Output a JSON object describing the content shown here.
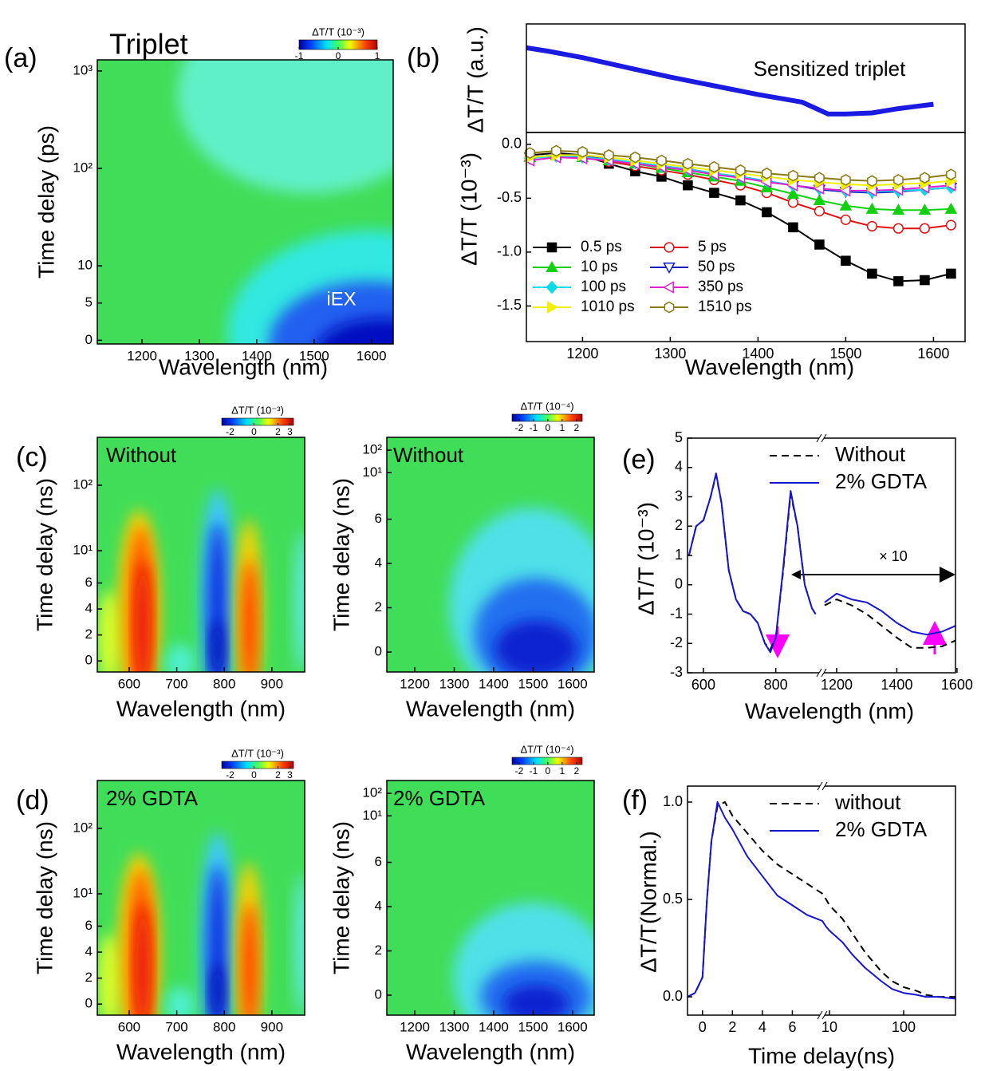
{
  "chart_data": [
    {
      "type": "heatmap",
      "panel_label": "(a)",
      "title": "Triplet",
      "annotation": "iEX",
      "xlabel": "Wavelength (nm)",
      "ylabel": "Time delay (ps)",
      "xlim": [
        1122,
        1638
      ],
      "xticks": [
        1200,
        1300,
        1400,
        1500,
        1600
      ],
      "ylim": [
        -0.5,
        1300
      ],
      "yscale": "linear-log",
      "ylinear_max": 10,
      "yticks": [
        0,
        5,
        10,
        {
          "value": 100,
          "label": "10²"
        },
        {
          "value": 1000,
          "label": "10³"
        }
      ],
      "colormap": "jet",
      "colorbar": {
        "label": "ΔT/T (10⁻³)",
        "lim": [
          -1,
          1
        ],
        "ticks": [
          -1,
          0,
          1
        ]
      }
    },
    {
      "type": "line",
      "panel_label": "(b)",
      "annotation": "Sensitized triplet",
      "ylabel": "ΔT/T (a.u.)",
      "xlim": [
        1136,
        1636
      ],
      "ylim": [
        0,
        1
      ],
      "x": [
        1136,
        1160,
        1200,
        1250,
        1300,
        1350,
        1400,
        1450,
        1480,
        1500,
        1530,
        1560,
        1600
      ],
      "series": [
        {
          "color": "#1a1ae0",
          "values": [
            0.78,
            0.75,
            0.69,
            0.6,
            0.51,
            0.43,
            0.35,
            0.28,
            0.17,
            0.17,
            0.18,
            0.22,
            0.26
          ]
        }
      ]
    },
    {
      "type": "line",
      "xlabel": "Wavelength (nm)",
      "ylabel": "ΔT/T (10⁻³)",
      "xlim": [
        1136,
        1636
      ],
      "xticks": [
        1200,
        1300,
        1400,
        1500,
        1600
      ],
      "ylim": [
        -1.83,
        0.11
      ],
      "yticks": [
        {
          "value": 0,
          "label": "0.0"
        },
        {
          "value": -0.5,
          "label": "-0.5"
        },
        {
          "value": -1,
          "label": "-1.0"
        },
        {
          "value": -1.5,
          "label": "-1.5"
        }
      ],
      "legend": "lower left",
      "legend_columns": 2,
      "x": [
        1140,
        1170,
        1200,
        1230,
        1260,
        1290,
        1320,
        1350,
        1380,
        1410,
        1440,
        1470,
        1500,
        1530,
        1560,
        1590,
        1620
      ],
      "series": [
        {
          "name": "0.5 ps",
          "color": "#000000",
          "marker": "square",
          "marker_filled": true,
          "values": [
            -0.1,
            -0.08,
            -0.1,
            -0.18,
            -0.25,
            -0.3,
            -0.38,
            -0.45,
            -0.52,
            -0.63,
            -0.77,
            -0.93,
            -1.08,
            -1.2,
            -1.27,
            -1.26,
            -1.2
          ]
        },
        {
          "name": "5 ps",
          "color": "#e01010",
          "marker": "circle",
          "marker_filled": false,
          "values": [
            -0.12,
            -0.1,
            -0.12,
            -0.16,
            -0.2,
            -0.24,
            -0.28,
            -0.33,
            -0.38,
            -0.45,
            -0.54,
            -0.62,
            -0.7,
            -0.76,
            -0.78,
            -0.78,
            -0.75
          ]
        },
        {
          "name": "10 ps",
          "color": "#10d010",
          "marker": "triangle-up",
          "marker_filled": true,
          "values": [
            -0.12,
            -0.1,
            -0.12,
            -0.15,
            -0.18,
            -0.22,
            -0.26,
            -0.3,
            -0.34,
            -0.4,
            -0.46,
            -0.52,
            -0.57,
            -0.6,
            -0.61,
            -0.61,
            -0.6
          ]
        },
        {
          "name": "50 ps",
          "color": "#1020c0",
          "marker": "triangle-down",
          "marker_filled": false,
          "values": [
            -0.12,
            -0.1,
            -0.11,
            -0.14,
            -0.17,
            -0.2,
            -0.23,
            -0.27,
            -0.3,
            -0.34,
            -0.38,
            -0.42,
            -0.44,
            -0.45,
            -0.44,
            -0.42,
            -0.4
          ]
        },
        {
          "name": "100 ps",
          "color": "#10d8e8",
          "marker": "diamond",
          "marker_filled": true,
          "values": [
            -0.13,
            -0.11,
            -0.12,
            -0.14,
            -0.17,
            -0.2,
            -0.23,
            -0.27,
            -0.3,
            -0.34,
            -0.38,
            -0.41,
            -0.43,
            -0.44,
            -0.43,
            -0.42,
            -0.4
          ]
        },
        {
          "name": "350 ps",
          "color": "#e020d0",
          "marker": "triangle-left",
          "marker_filled": false,
          "values": [
            -0.15,
            -0.12,
            -0.13,
            -0.15,
            -0.18,
            -0.21,
            -0.24,
            -0.28,
            -0.31,
            -0.35,
            -0.38,
            -0.41,
            -0.43,
            -0.43,
            -0.42,
            -0.4,
            -0.38
          ]
        },
        {
          "name": "1010 ps",
          "color": "#f0f000",
          "marker": "triangle-right",
          "marker_filled": true,
          "values": [
            -0.12,
            -0.1,
            -0.1,
            -0.12,
            -0.15,
            -0.18,
            -0.21,
            -0.24,
            -0.27,
            -0.3,
            -0.33,
            -0.35,
            -0.37,
            -0.38,
            -0.37,
            -0.36,
            -0.34
          ]
        },
        {
          "name": "1510 ps",
          "color": "#8a7a10",
          "marker": "hexagon",
          "marker_filled": false,
          "values": [
            -0.08,
            -0.06,
            -0.07,
            -0.1,
            -0.12,
            -0.15,
            -0.18,
            -0.21,
            -0.24,
            -0.27,
            -0.29,
            -0.31,
            -0.33,
            -0.34,
            -0.33,
            -0.31,
            -0.28
          ]
        }
      ]
    },
    {
      "type": "heatmap",
      "panel_label": "(c)",
      "annotation": "Without",
      "xlabel": "Wavelength (nm)",
      "ylabel": "Time delay (ns)",
      "xlim": [
        533,
        969
      ],
      "xticks": [
        600,
        700,
        800,
        900
      ],
      "ylim": [
        -0.85,
        540
      ],
      "yscale": "linear-log",
      "ylinear_max": 8,
      "yticks": [
        0,
        2,
        4,
        6,
        {
          "value": 10,
          "label": "10¹"
        },
        {
          "value": 100,
          "label": "10²"
        }
      ],
      "colormap": "jet",
      "colorbar": {
        "label": "ΔT/T (10⁻³)",
        "lim": [
          -2.7,
          3.3
        ],
        "ticks": [
          -2,
          0,
          2,
          3
        ]
      }
    },
    {
      "type": "heatmap",
      "annotation": "Without",
      "xlabel": "Wavelength (nm)",
      "ylabel": "Time delay (ns)",
      "xlim": [
        1129,
        1655
      ],
      "xticks": [
        1200,
        1300,
        1400,
        1500,
        1600
      ],
      "ylim": [
        -0.9,
        370
      ],
      "yscale": "linear-log",
      "ylinear_max": 8,
      "yticks": [
        0,
        2,
        4,
        6,
        {
          "value": 10,
          "label": "10¹"
        },
        {
          "value": 100,
          "label": "10²"
        }
      ],
      "colormap": "jet",
      "colorbar": {
        "label": "ΔT/T (10⁻⁴)",
        "lim": [
          -2.5,
          2.4
        ],
        "ticks": [
          -2,
          -1,
          0,
          1,
          2
        ]
      }
    },
    {
      "type": "heatmap",
      "panel_label": "(d)",
      "annotation": "2% GDTA",
      "xlabel": "Wavelength (nm)",
      "ylabel": "Time delay (ns)",
      "xlim": [
        533,
        969
      ],
      "xticks": [
        600,
        700,
        800,
        900
      ],
      "ylim": [
        -0.85,
        540
      ],
      "yscale": "linear-log",
      "ylinear_max": 8,
      "yticks": [
        0,
        2,
        4,
        6,
        {
          "value": 10,
          "label": "10¹"
        },
        {
          "value": 100,
          "label": "10²"
        }
      ],
      "colormap": "jet",
      "colorbar": {
        "label": "ΔT/T (10⁻³)",
        "lim": [
          -2.7,
          3.3
        ],
        "ticks": [
          -2,
          0,
          2,
          3
        ]
      }
    },
    {
      "type": "heatmap",
      "annotation": "2% GDTA",
      "xlabel": "Wavelength (nm)",
      "ylabel": "Time delay (ns)",
      "xlim": [
        1129,
        1655
      ],
      "xticks": [
        1200,
        1300,
        1400,
        1500,
        1600
      ],
      "ylim": [
        -0.9,
        370
      ],
      "yscale": "linear-log",
      "ylinear_max": 8,
      "yticks": [
        0,
        2,
        4,
        6,
        {
          "value": 10,
          "label": "10¹"
        },
        {
          "value": 100,
          "label": "10²"
        }
      ],
      "colormap": "jet",
      "colorbar": {
        "label": "ΔT/T (10⁻⁴)",
        "lim": [
          -2.5,
          2.4
        ],
        "ticks": [
          -2,
          -1,
          0,
          1,
          2
        ]
      }
    },
    {
      "type": "line",
      "panel_label": "(e)",
      "annotation": "× 10",
      "xlabel": "Wavelength (nm)",
      "ylabel": "ΔT/T (10⁻³)",
      "xlim": [
        556,
        1595
      ],
      "xbreak": [
        922,
        1155
      ],
      "xticks": [
        600,
        800,
        1200,
        1400,
        1600
      ],
      "ylim": [
        -3,
        5
      ],
      "yticks": [
        -3,
        -2,
        -1,
        0,
        1,
        2,
        3,
        4,
        5
      ],
      "legend": "upper right",
      "x": [
        560,
        580,
        600,
        620,
        635,
        650,
        670,
        690,
        710,
        730,
        750,
        770,
        785,
        800,
        820,
        841,
        860,
        880,
        900,
        910,
        1000,
        1160,
        1200,
        1250,
        1300,
        1350,
        1400,
        1450,
        1500,
        1550,
        1595
      ],
      "series": [
        {
          "name": "Without",
          "color": "#000000",
          "dash": "dashed",
          "values": [
            1.0,
            2.0,
            2.2,
            3.0,
            3.75,
            2.8,
            0.5,
            -0.5,
            -0.9,
            -1.0,
            -1.3,
            -2.0,
            -2.2,
            -1.8,
            0.4,
            3.1,
            2.0,
            0.0,
            -0.8,
            -1.0,
            null,
            -0.7,
            -0.5,
            -0.7,
            -1.0,
            -1.4,
            -1.8,
            -2.15,
            -2.15,
            -2.1,
            -1.9
          ]
        },
        {
          "name": "2% GDTA",
          "color": "#1515d0",
          "values": [
            1.0,
            2.0,
            2.2,
            3.0,
            3.8,
            2.8,
            0.5,
            -0.5,
            -0.9,
            -1.0,
            -1.3,
            -2.0,
            -2.3,
            -1.8,
            0.5,
            3.2,
            2.0,
            0.0,
            -0.8,
            -1.0,
            null,
            -0.6,
            -0.3,
            -0.5,
            -0.6,
            -0.9,
            -1.3,
            -1.6,
            -1.7,
            -1.6,
            -1.4
          ]
        }
      ]
    },
    {
      "type": "line",
      "panel_label": "(f)",
      "xlabel": "Time delay(ns)",
      "ylabel": "ΔT/T(Normal.)",
      "xlim": [
        -1,
        500
      ],
      "xscale": "linear-log",
      "xlinear_max": 8,
      "xticks": [
        0,
        2,
        4,
        6,
        10,
        100
      ],
      "ylim": [
        -0.094,
        1.082
      ],
      "yticks": [
        {
          "value": 0,
          "label": "0.0"
        },
        {
          "value": 0.5,
          "label": "0.5"
        },
        {
          "value": 1,
          "label": "1.0"
        }
      ],
      "legend": "upper right",
      "x": [
        -1,
        -0.5,
        0,
        0.3,
        0.6,
        1,
        1.5,
        2,
        3,
        4,
        5,
        6,
        7,
        8,
        9,
        10,
        15,
        20,
        30,
        50,
        70,
        100,
        150,
        200,
        300,
        500
      ],
      "series": [
        {
          "name": "without",
          "color": "#000000",
          "dash": "dashed",
          "values": [
            0.0,
            0.02,
            0.1,
            0.5,
            0.8,
            0.98,
            1.0,
            0.93,
            0.84,
            0.75,
            0.68,
            0.63,
            0.58,
            0.53,
            0.5,
            0.47,
            0.4,
            0.33,
            0.23,
            0.13,
            0.08,
            0.05,
            0.03,
            0.01,
            0.0,
            0.0
          ]
        },
        {
          "name": "2% GDTA",
          "color": "#1515d0",
          "values": [
            0.0,
            0.02,
            0.1,
            0.5,
            0.8,
            1.0,
            0.92,
            0.86,
            0.72,
            0.62,
            0.52,
            0.47,
            0.42,
            0.39,
            0.36,
            0.34,
            0.28,
            0.22,
            0.15,
            0.08,
            0.04,
            0.02,
            0.01,
            0.0,
            0.0,
            -0.01
          ]
        }
      ]
    }
  ]
}
